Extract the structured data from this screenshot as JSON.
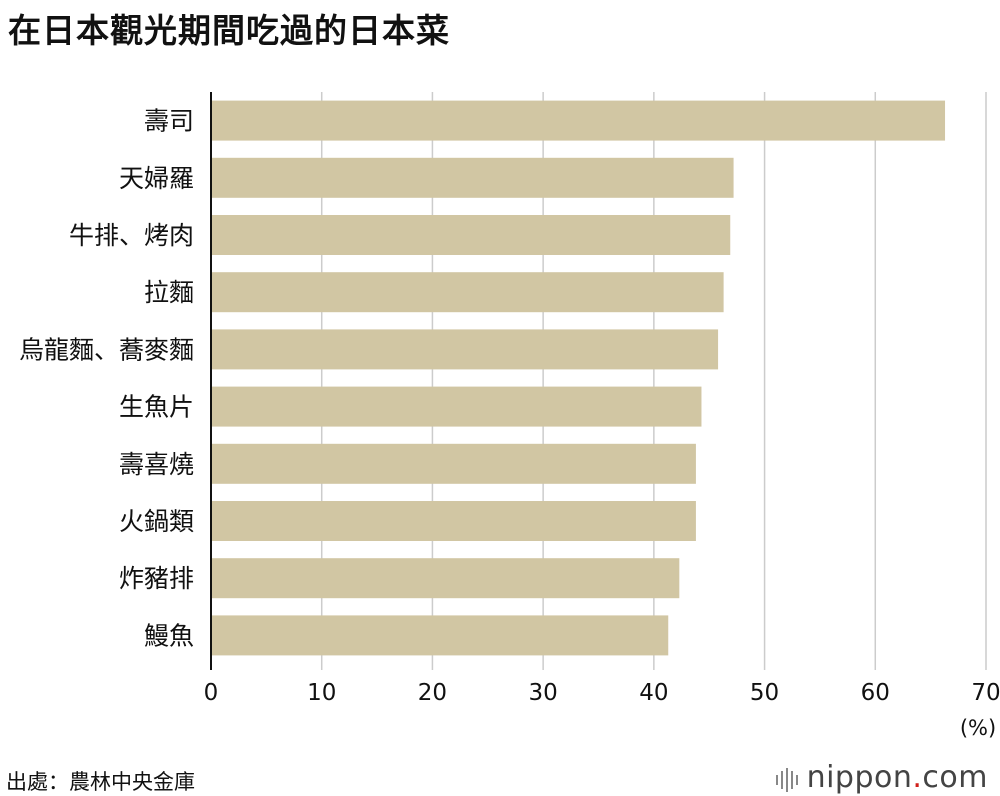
{
  "title": "在日本觀光期間吃過的日本菜",
  "source": "出處：農林中央金庫",
  "brand": {
    "name": "nippon",
    "dot": ".",
    "suffix": "com"
  },
  "chart_data": {
    "type": "bar",
    "orientation": "horizontal",
    "categories": [
      "壽司",
      "天婦羅",
      "牛排、烤肉",
      "拉麵",
      "烏龍麵、蕎麥麵",
      "生魚片",
      "壽喜燒",
      "火鍋類",
      "炸豬排",
      "鰻魚"
    ],
    "values": [
      66.3,
      47.2,
      46.9,
      46.3,
      45.8,
      44.3,
      43.8,
      43.8,
      42.3,
      41.3
    ],
    "xlim": [
      0,
      70
    ],
    "xticks": [
      0,
      10,
      20,
      30,
      40,
      50,
      60,
      70
    ],
    "unit": "(%)",
    "grid": true,
    "bar_color": "#d1c6a3",
    "grid_color": "#cccccc"
  }
}
